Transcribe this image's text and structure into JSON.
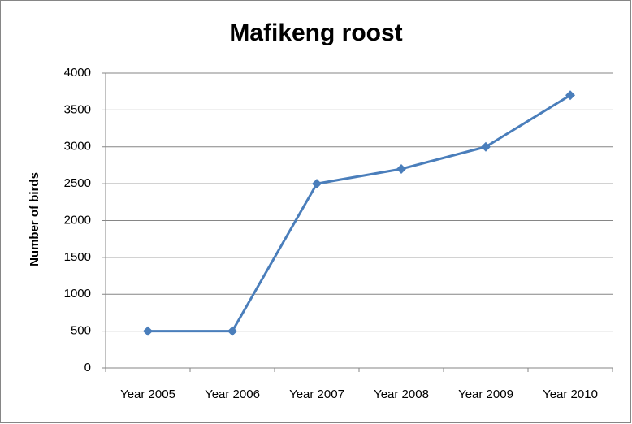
{
  "chart_data": {
    "type": "line",
    "title": "Mafikeng roost",
    "y_label": "Number of birds",
    "categories": [
      "Year 2005",
      "Year 2006",
      "Year 2007",
      "Year 2008",
      "Year 2009",
      "Year 2010"
    ],
    "series": [
      {
        "name": "Mafikeng roost",
        "color": "#4a7ebb",
        "values": [
          500,
          500,
          2500,
          2700,
          3000,
          3700
        ]
      }
    ],
    "ylim": [
      0,
      4000
    ],
    "yticks": [
      0,
      500,
      1000,
      1500,
      2000,
      2500,
      3000,
      3500,
      4000
    ],
    "grid": true
  }
}
